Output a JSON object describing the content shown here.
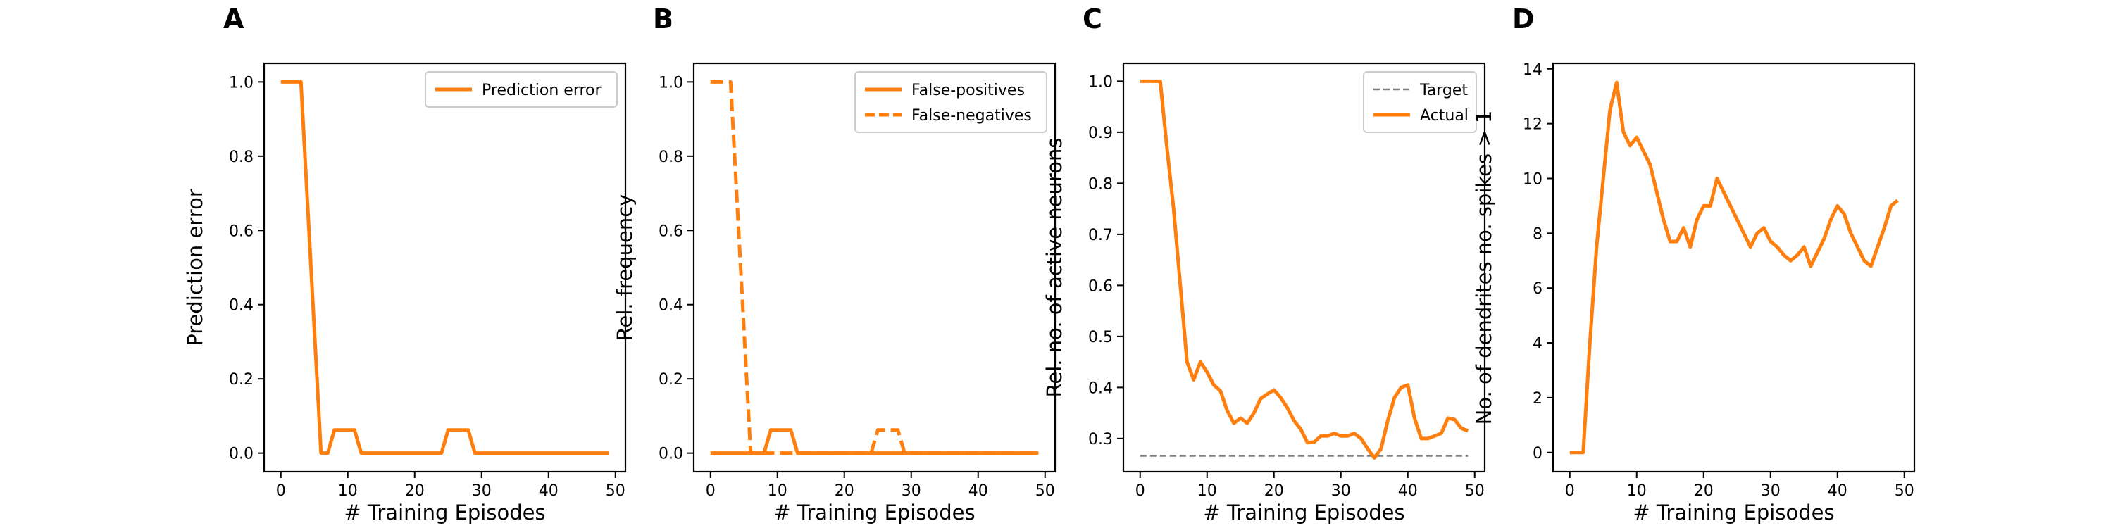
{
  "colors": {
    "orange": "#ff7f0e",
    "gray": "#808080"
  },
  "chart_data": [
    {
      "type": "line",
      "panel_label": "A",
      "xlabel": "# Training Episodes",
      "ylabel": "Prediction error",
      "xlim": [
        -2.5,
        51.5
      ],
      "ylim": [
        -0.05,
        1.05
      ],
      "xticks": [
        0,
        10,
        20,
        30,
        40,
        50
      ],
      "yticks": [
        0.0,
        0.2,
        0.4,
        0.6,
        0.8,
        1.0
      ],
      "ytick_labels": [
        "0.0",
        "0.2",
        "0.4",
        "0.6",
        "0.8",
        "1.0"
      ],
      "legend_position": "upper right",
      "series": [
        {
          "name": "Prediction error",
          "color": "#ff7f0e",
          "style": "solid",
          "x": [
            0,
            1,
            2,
            3,
            4,
            5,
            6,
            7,
            8,
            9,
            10,
            11,
            12,
            13,
            14,
            15,
            16,
            17,
            18,
            19,
            20,
            21,
            22,
            23,
            24,
            25,
            26,
            27,
            28,
            29,
            30,
            31,
            32,
            33,
            34,
            35,
            36,
            37,
            38,
            39,
            40,
            41,
            42,
            43,
            44,
            45,
            46,
            47,
            48,
            49
          ],
          "y": [
            1,
            1,
            1,
            1,
            0.667,
            0.333,
            0,
            0,
            0.0625,
            0.0625,
            0.0625,
            0.0625,
            0,
            0,
            0,
            0,
            0,
            0,
            0,
            0,
            0,
            0,
            0,
            0,
            0,
            0.0625,
            0.0625,
            0.0625,
            0.0625,
            0,
            0,
            0,
            0,
            0,
            0,
            0,
            0,
            0,
            0,
            0,
            0,
            0,
            0,
            0,
            0,
            0,
            0,
            0,
            0,
            0
          ]
        }
      ]
    },
    {
      "type": "line",
      "panel_label": "B",
      "xlabel": "# Training Episodes",
      "ylabel": "Rel. frequency",
      "xlim": [
        -2.5,
        51.5
      ],
      "ylim": [
        -0.05,
        1.05
      ],
      "xticks": [
        0,
        10,
        20,
        30,
        40,
        50
      ],
      "yticks": [
        0.0,
        0.2,
        0.4,
        0.6,
        0.8,
        1.0
      ],
      "ytick_labels": [
        "0.0",
        "0.2",
        "0.4",
        "0.6",
        "0.8",
        "1.0"
      ],
      "legend_position": "upper right",
      "series": [
        {
          "name": "False-positives",
          "color": "#ff7f0e",
          "style": "solid",
          "x": [
            0,
            1,
            2,
            3,
            4,
            5,
            6,
            7,
            8,
            9,
            10,
            11,
            12,
            13,
            14,
            15,
            16,
            17,
            18,
            19,
            20,
            21,
            22,
            23,
            24,
            25,
            26,
            27,
            28,
            29,
            30,
            31,
            32,
            33,
            34,
            35,
            36,
            37,
            38,
            39,
            40,
            41,
            42,
            43,
            44,
            45,
            46,
            47,
            48,
            49
          ],
          "y": [
            0,
            0,
            0,
            0,
            0,
            0,
            0,
            0,
            0,
            0.0625,
            0.0625,
            0.0625,
            0.0625,
            0,
            0,
            0,
            0,
            0,
            0,
            0,
            0,
            0,
            0,
            0,
            0,
            0,
            0,
            0,
            0,
            0,
            0,
            0,
            0,
            0,
            0,
            0,
            0,
            0,
            0,
            0,
            0,
            0,
            0,
            0,
            0,
            0,
            0,
            0,
            0,
            0
          ]
        },
        {
          "name": "False-negatives",
          "color": "#ff7f0e",
          "style": "dashed",
          "x": [
            0,
            1,
            2,
            3,
            4,
            5,
            6,
            7,
            8,
            9,
            10,
            11,
            12,
            13,
            14,
            15,
            16,
            17,
            18,
            19,
            20,
            21,
            22,
            23,
            24,
            25,
            26,
            27,
            28,
            29,
            30,
            31,
            32,
            33,
            34,
            35,
            36,
            37,
            38,
            39,
            40,
            41,
            42,
            43,
            44,
            45,
            46,
            47,
            48,
            49
          ],
          "y": [
            1,
            1,
            1,
            1,
            0.667,
            0.333,
            0,
            0,
            0,
            0,
            0,
            0,
            0,
            0,
            0,
            0,
            0,
            0,
            0,
            0,
            0,
            0,
            0,
            0,
            0,
            0.0625,
            0.0625,
            0.0625,
            0.0625,
            0,
            0,
            0,
            0,
            0,
            0,
            0,
            0,
            0,
            0,
            0,
            0,
            0,
            0,
            0,
            0,
            0,
            0,
            0,
            0,
            0
          ]
        }
      ]
    },
    {
      "type": "line",
      "panel_label": "C",
      "xlabel": "# Training Episodes",
      "ylabel": "Rel. no. of active neurons",
      "xlim": [
        -2.5,
        51.5
      ],
      "ylim": [
        0.235,
        1.035
      ],
      "xticks": [
        0,
        10,
        20,
        30,
        40,
        50
      ],
      "yticks": [
        0.3,
        0.4,
        0.5,
        0.6,
        0.7,
        0.8,
        0.9,
        1.0
      ],
      "ytick_labels": [
        "0.3",
        "0.4",
        "0.5",
        "0.6",
        "0.7",
        "0.8",
        "0.9",
        "1.0"
      ],
      "legend_position": "upper right",
      "series": [
        {
          "name": "Target",
          "color": "#808080",
          "style": "dashed",
          "x": [
            0,
            49
          ],
          "y": [
            0.266,
            0.266
          ]
        },
        {
          "name": "Actual",
          "color": "#ff7f0e",
          "style": "solid",
          "x": [
            0,
            1,
            2,
            3,
            4,
            5,
            6,
            7,
            8,
            9,
            10,
            11,
            12,
            13,
            14,
            15,
            16,
            17,
            18,
            19,
            20,
            21,
            22,
            23,
            24,
            25,
            26,
            27,
            28,
            29,
            30,
            31,
            32,
            33,
            34,
            35,
            36,
            37,
            38,
            39,
            40,
            41,
            42,
            43,
            44,
            45,
            46,
            47,
            48,
            49
          ],
          "y": [
            1.0,
            1.0,
            1.0,
            1.0,
            0.87,
            0.75,
            0.6,
            0.45,
            0.415,
            0.45,
            0.43,
            0.405,
            0.393,
            0.355,
            0.33,
            0.34,
            0.33,
            0.35,
            0.378,
            0.387,
            0.395,
            0.38,
            0.36,
            0.335,
            0.318,
            0.292,
            0.293,
            0.305,
            0.305,
            0.31,
            0.305,
            0.305,
            0.31,
            0.3,
            0.28,
            0.262,
            0.28,
            0.335,
            0.38,
            0.4,
            0.405,
            0.34,
            0.3,
            0.3,
            0.305,
            0.31,
            0.34,
            0.337,
            0.32,
            0.315
          ]
        }
      ]
    },
    {
      "type": "line",
      "panel_label": "D",
      "xlabel": "# Training Episodes",
      "ylabel": "No. of dendrites no. spikes > 1",
      "xlim": [
        -2.5,
        51.5
      ],
      "ylim": [
        -0.7,
        14.2
      ],
      "xticks": [
        0,
        10,
        20,
        30,
        40,
        50
      ],
      "yticks": [
        0,
        2,
        4,
        6,
        8,
        10,
        12,
        14
      ],
      "ytick_labels": [
        "0",
        "2",
        "4",
        "6",
        "8",
        "10",
        "12",
        "14"
      ],
      "legend_position": "none",
      "series": [
        {
          "name": "",
          "color": "#ff7f0e",
          "style": "solid",
          "x": [
            0,
            1,
            2,
            3,
            4,
            5,
            6,
            7,
            8,
            9,
            10,
            11,
            12,
            13,
            14,
            15,
            16,
            17,
            18,
            19,
            20,
            21,
            22,
            23,
            24,
            25,
            26,
            27,
            28,
            29,
            30,
            31,
            32,
            33,
            34,
            35,
            36,
            37,
            38,
            39,
            40,
            41,
            42,
            43,
            44,
            45,
            46,
            47,
            48,
            49
          ],
          "y": [
            0,
            0,
            0,
            4,
            7.5,
            10,
            12.5,
            13.5,
            11.7,
            11.2,
            11.5,
            11,
            10.5,
            9.5,
            8.5,
            7.7,
            7.7,
            8.2,
            7.5,
            8.5,
            9,
            9,
            10,
            9.5,
            9,
            8.5,
            8,
            7.5,
            8,
            8.2,
            7.7,
            7.5,
            7.2,
            7,
            7.2,
            7.5,
            6.8,
            7.3,
            7.8,
            8.5,
            9,
            8.7,
            8,
            7.5,
            7,
            6.8,
            7.5,
            8.2,
            9,
            9.2
          ]
        }
      ]
    }
  ]
}
